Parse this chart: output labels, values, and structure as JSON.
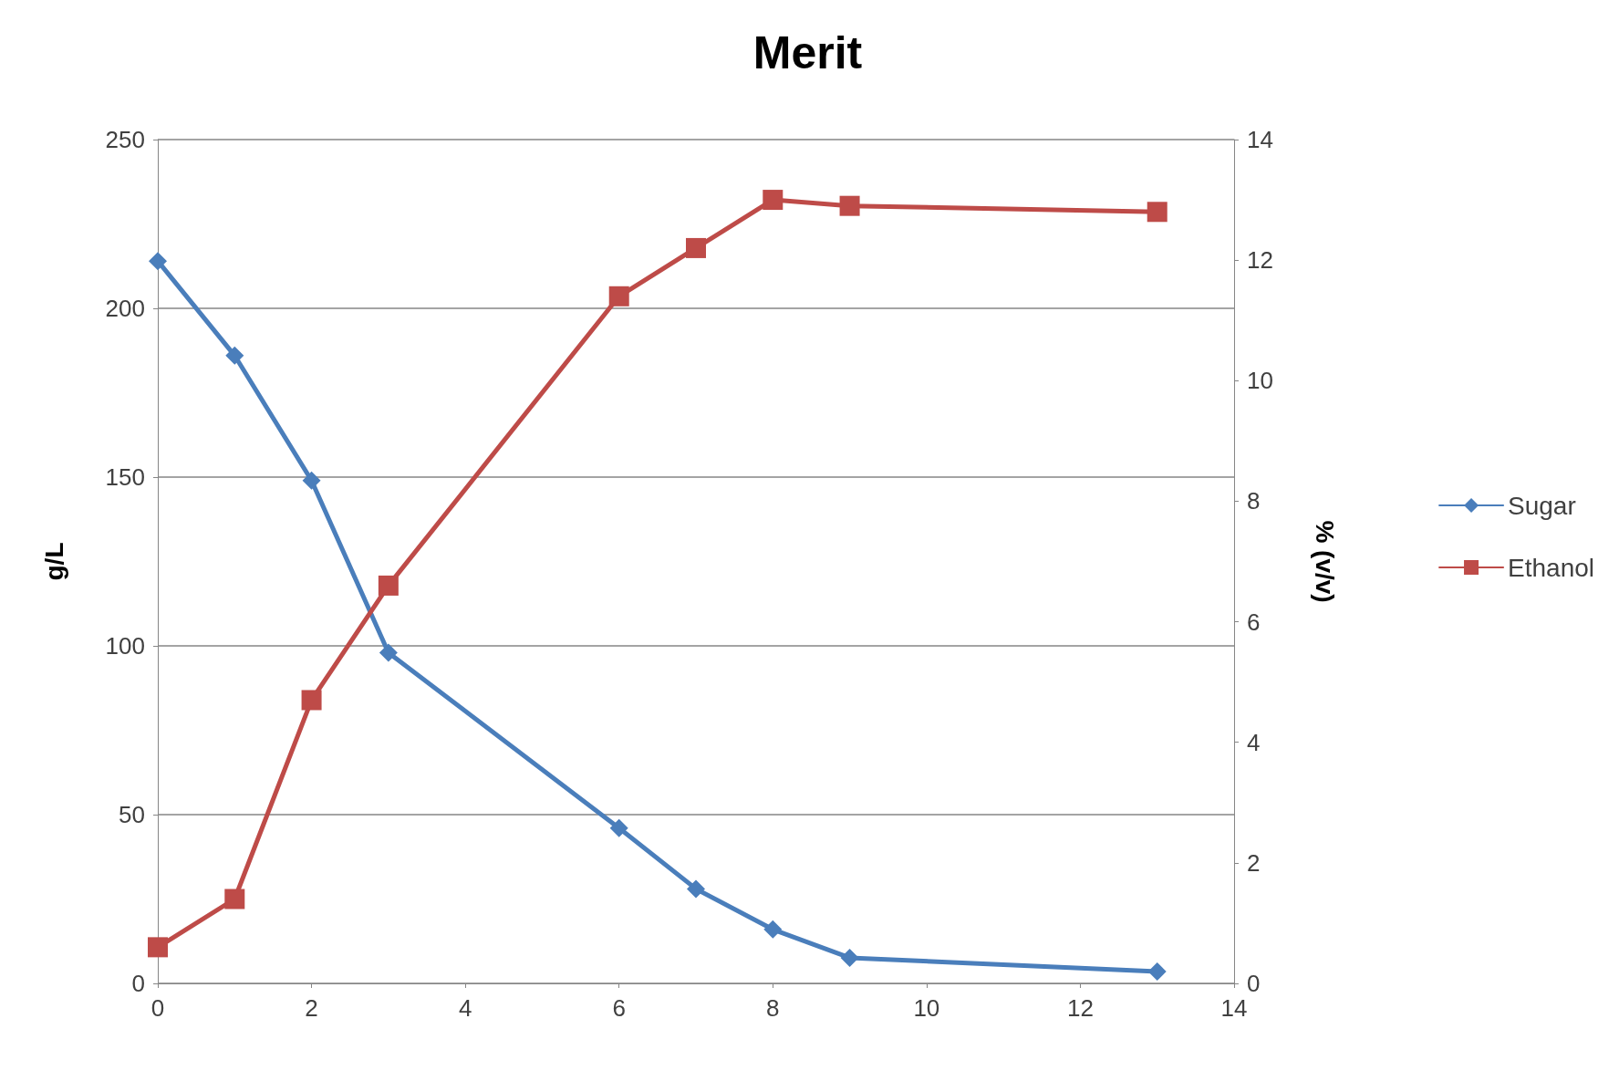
{
  "chart_data": {
    "type": "line",
    "title": "Merit",
    "ylabel": "g/L",
    "y2label": "% (v/v)",
    "x": [
      0,
      1,
      2,
      3,
      6,
      7,
      8,
      9,
      13
    ],
    "xlim": [
      0,
      14
    ],
    "xticks": [
      0,
      2,
      4,
      6,
      8,
      10,
      12,
      14
    ],
    "ylim": [
      0,
      250
    ],
    "yticks": [
      0,
      50,
      100,
      150,
      200,
      250
    ],
    "y2lim": [
      0,
      14
    ],
    "y2ticks": [
      0,
      2,
      4,
      6,
      8,
      10,
      12,
      14
    ],
    "grid": "y",
    "legend": "right",
    "line_style": "solid",
    "series": [
      {
        "name": "Sugar",
        "color": "#4a7ebb",
        "marker": "diamond",
        "values": [
          214,
          186,
          149,
          98,
          46,
          28,
          16,
          7.6,
          3.5
        ]
      },
      {
        "name": "Ethanol",
        "color": "#be4b48",
        "marker": "square",
        "axis": "y2",
        "values": [
          0.6,
          1.4,
          4.7,
          6.6,
          11.4,
          12.2,
          13.0,
          12.9,
          12.8
        ]
      }
    ]
  }
}
